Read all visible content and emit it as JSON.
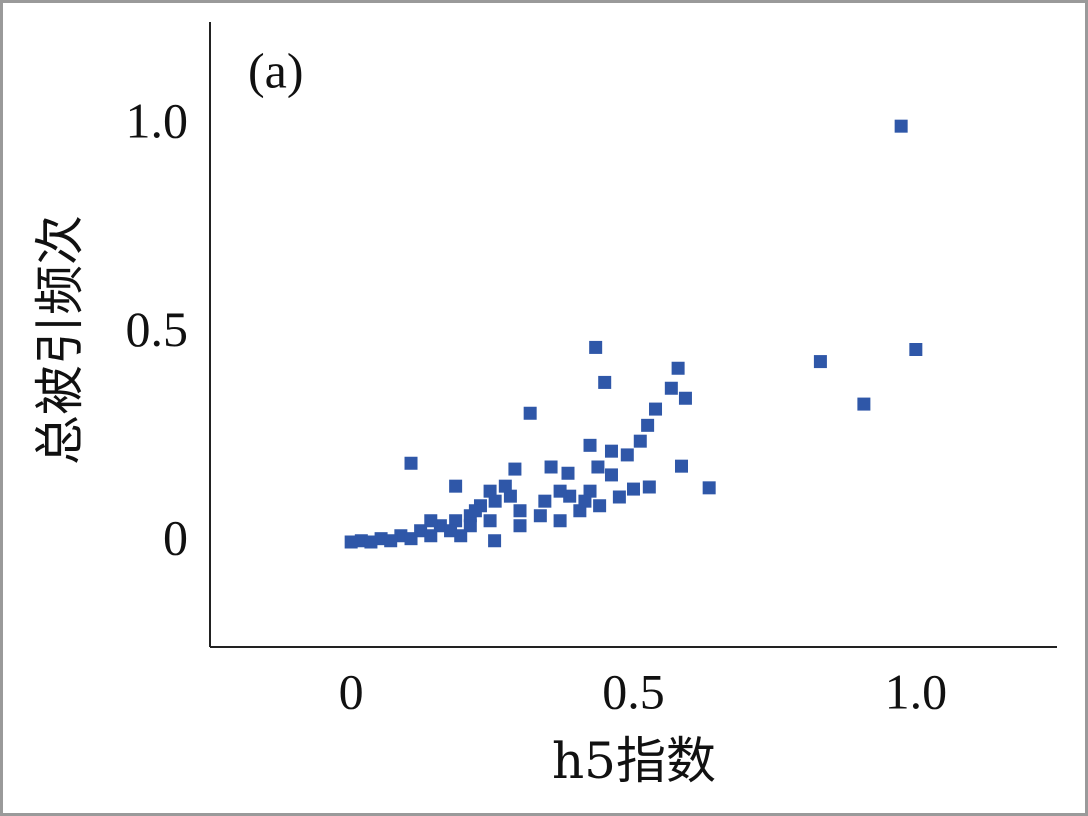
{
  "chart_data": {
    "type": "scatter",
    "annotation": "(a)",
    "x_label": "h5指数",
    "y_label": "总被引频次",
    "color": "#2f57a8",
    "xlim": [
      -0.25,
      1.25
    ],
    "ylim": [
      -0.25,
      1.25
    ],
    "xticks": [
      0,
      0.5,
      {
        "value": 1,
        "label": "1.0"
      }
    ],
    "yticks": [
      0,
      0.5,
      {
        "value": 1,
        "label": "1.0"
      }
    ],
    "x": [
      0.974,
      1.0,
      0.831,
      0.908,
      0.634,
      0.433,
      0.579,
      0.449,
      0.592,
      0.567,
      0.317,
      0.539,
      0.525,
      0.512,
      0.423,
      0.461,
      0.489,
      0.106,
      0.354,
      0.29,
      0.585,
      0.437,
      0.461,
      0.384,
      0.185,
      0.528,
      0.5,
      0.475,
      0.44,
      0.405,
      0.37,
      0.335,
      0.282,
      0.255,
      0.229,
      0.211,
      0.185,
      0.158,
      0.123,
      0.088,
      0.053,
      0.018,
      0,
      0.035,
      0.07,
      0.106,
      0.141,
      0.176,
      0.211,
      0.246,
      0.254,
      0.299,
      0.343,
      0.387,
      0.423,
      0.273,
      0.246,
      0.22,
      0.141,
      0.37,
      0.414,
      0.299,
      0.194
    ],
    "y": [
      1.0,
      0.464,
      0.435,
      0.333,
      0.132,
      0.469,
      0.419,
      0.385,
      0.347,
      0.371,
      0.311,
      0.321,
      0.282,
      0.244,
      0.234,
      0.22,
      0.211,
      0.191,
      0.182,
      0.177,
      0.184,
      0.182,
      0.163,
      0.167,
      0.136,
      0.134,
      0.129,
      0.11,
      0.089,
      0.077,
      0.053,
      0.065,
      0.112,
      0.1,
      0.089,
      0.065,
      0.053,
      0.041,
      0.029,
      0.017,
      0.01,
      0.005,
      0.002,
      0.002,
      0.005,
      0.01,
      0.017,
      0.029,
      0.041,
      0.053,
      0.005,
      0.077,
      0.1,
      0.112,
      0.124,
      0.136,
      0.124,
      0.077,
      0.053,
      0.124,
      0.1,
      0.041,
      0.017
    ]
  }
}
